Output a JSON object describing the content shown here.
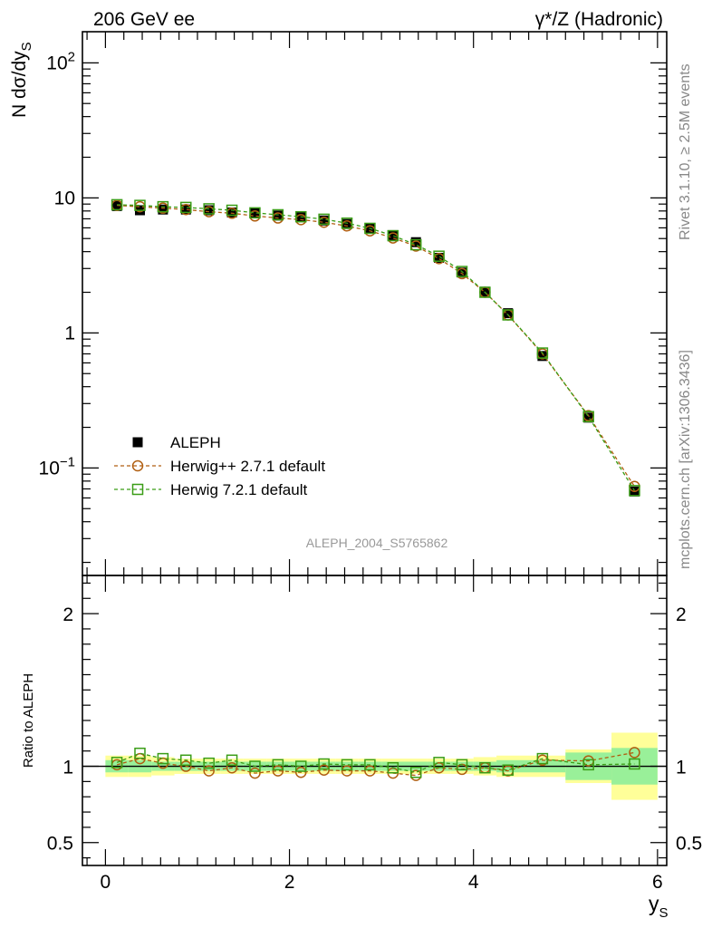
{
  "header": {
    "left_label": "206 GeV ee",
    "right_label": "γ*/Z (Hadronic)"
  },
  "side": {
    "rivet_label": "Rivet 3.1.10, ≥ 2.5M events",
    "mcplots_label": "mcplots.cern.ch [arXiv:1306.3436]"
  },
  "analysis_label": "ALEPH_2004_S5765862",
  "chart_data": [
    {
      "type": "scatter",
      "role": "main",
      "title": "",
      "ylabel": "N dσ/dy",
      "ylabel_sub": "S",
      "xlabel": "y",
      "xlabel_sub": "S",
      "xlim": [
        -0.25,
        6.1
      ],
      "ylim": [
        0.016,
        170
      ],
      "yscale": "log",
      "yticks": [
        {
          "v": 100,
          "base": "10",
          "exp": "2"
        },
        {
          "v": 10,
          "base": "10",
          "exp": ""
        },
        {
          "v": 1,
          "base": "1",
          "exp": ""
        },
        {
          "v": 0.1,
          "base": "10",
          "exp": "−1"
        }
      ],
      "legend_position": "lower-left",
      "x": [
        0.125,
        0.375,
        0.625,
        0.875,
        1.125,
        1.375,
        1.625,
        1.875,
        2.125,
        2.375,
        2.625,
        2.875,
        3.125,
        3.375,
        3.625,
        3.875,
        4.125,
        4.375,
        4.75,
        5.25,
        5.75
      ],
      "series": [
        {
          "name": "ALEPH",
          "color": "#000000",
          "marker": "filled-square",
          "values": [
            8.7,
            8.1,
            8.2,
            8.2,
            8.1,
            7.8,
            7.7,
            7.4,
            7.2,
            6.8,
            6.4,
            5.9,
            5.3,
            4.7,
            3.6,
            2.8,
            2.02,
            1.4,
            0.675,
            0.236,
            0.067
          ]
        },
        {
          "name": "Herwig++ 2.7.1 default",
          "color": "#b05e10",
          "marker": "open-circle",
          "values": [
            8.8,
            8.6,
            8.4,
            8.2,
            7.9,
            7.7,
            7.35,
            7.1,
            6.9,
            6.6,
            6.2,
            5.7,
            5.05,
            4.4,
            3.55,
            2.75,
            2.0,
            1.36,
            0.7,
            0.244,
            0.073
          ]
        },
        {
          "name": "Herwig 7.2.1 default",
          "color": "#3a9d16",
          "marker": "open-square",
          "values": [
            8.9,
            8.8,
            8.6,
            8.5,
            8.3,
            8.1,
            7.75,
            7.5,
            7.25,
            6.95,
            6.5,
            5.95,
            5.25,
            4.5,
            3.7,
            2.85,
            2.0,
            1.36,
            0.71,
            0.24,
            0.068
          ]
        }
      ]
    },
    {
      "type": "scatter",
      "role": "ratio",
      "ylabel": "Ratio to ALEPH",
      "xlim": [
        -0.25,
        6.1
      ],
      "ylim": [
        0.35,
        2.25
      ],
      "yticks": [
        0.5,
        1,
        2
      ],
      "xticks": [
        0,
        2,
        4,
        6
      ],
      "reference_line": 1,
      "bands": {
        "edges": [
          0,
          0.25,
          0.5,
          0.75,
          1.0,
          1.25,
          1.5,
          1.75,
          2.0,
          2.25,
          2.5,
          2.75,
          3.0,
          3.25,
          3.5,
          3.75,
          4.0,
          4.25,
          4.5,
          5.0,
          5.5,
          6.0
        ],
        "inner_color": "#99f099",
        "outer_color": "#ffff99",
        "inner": [
          0.04,
          0.04,
          0.03,
          0.03,
          0.03,
          0.03,
          0.03,
          0.03,
          0.03,
          0.03,
          0.03,
          0.03,
          0.03,
          0.03,
          0.03,
          0.03,
          0.03,
          0.04,
          0.04,
          0.09,
          0.12
        ],
        "outer": [
          0.07,
          0.07,
          0.06,
          0.05,
          0.05,
          0.05,
          0.05,
          0.05,
          0.05,
          0.05,
          0.05,
          0.05,
          0.05,
          0.05,
          0.05,
          0.05,
          0.06,
          0.07,
          0.07,
          0.11,
          0.22
        ]
      },
      "series": [
        {
          "name": "Herwig++ 2.7.1 default",
          "color": "#b05e10",
          "marker": "open-circle",
          "values": [
            1.01,
            1.05,
            1.02,
            1.0,
            0.97,
            0.99,
            0.955,
            0.97,
            0.96,
            0.975,
            0.97,
            0.97,
            0.955,
            0.94,
            0.99,
            0.98,
            0.99,
            0.97,
            1.04,
            1.035,
            1.09
          ]
        },
        {
          "name": "Herwig 7.2.1 default",
          "color": "#3a9d16",
          "marker": "open-square",
          "values": [
            1.025,
            1.085,
            1.05,
            1.04,
            1.02,
            1.04,
            1.0,
            1.01,
            1.0,
            1.015,
            1.01,
            1.01,
            0.99,
            0.96,
            1.025,
            1.01,
            0.99,
            0.975,
            1.05,
            1.01,
            1.015
          ]
        }
      ]
    }
  ]
}
